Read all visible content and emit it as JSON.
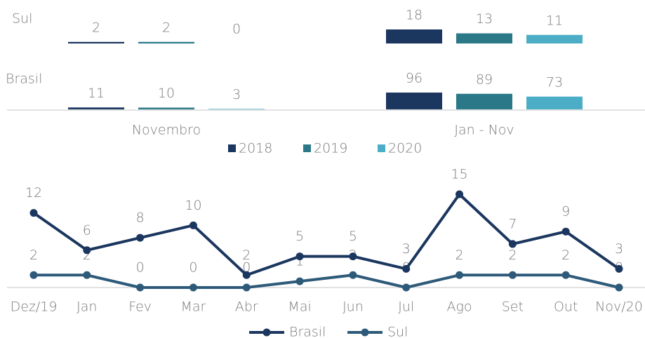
{
  "chart_data": [
    {
      "type": "panel-bar",
      "rows": [
        "Sul",
        "Brasil"
      ],
      "groups": [
        "Novembro",
        "Jan - Nov"
      ],
      "series": [
        {
          "name": "2018",
          "color": "#1b365f",
          "values": [
            [
              2,
              18
            ],
            [
              11,
              96
            ]
          ]
        },
        {
          "name": "2019",
          "color": "#2a7888",
          "values": [
            [
              2,
              13
            ],
            [
              10,
              89
            ]
          ]
        },
        {
          "name": "2020",
          "color": "#4baec6",
          "values": [
            [
              0,
              11
            ],
            [
              3,
              73
            ]
          ]
        }
      ]
    },
    {
      "type": "line",
      "categories": [
        "Dez/19",
        "Jan",
        "Fev",
        "Mar",
        "Abr",
        "Mai",
        "Jun",
        "Jul",
        "Ago",
        "Set",
        "Out",
        "Nov/20"
      ],
      "series": [
        {
          "name": "Brasil",
          "color": "#1b365f",
          "values": [
            12,
            6,
            8,
            10,
            2,
            5,
            5,
            3,
            15,
            7,
            9,
            3
          ]
        },
        {
          "name": "Sul",
          "color": "#2e5a7a",
          "values": [
            2,
            2,
            0,
            0,
            0,
            1,
            2,
            0,
            2,
            2,
            2,
            0
          ]
        }
      ]
    }
  ]
}
